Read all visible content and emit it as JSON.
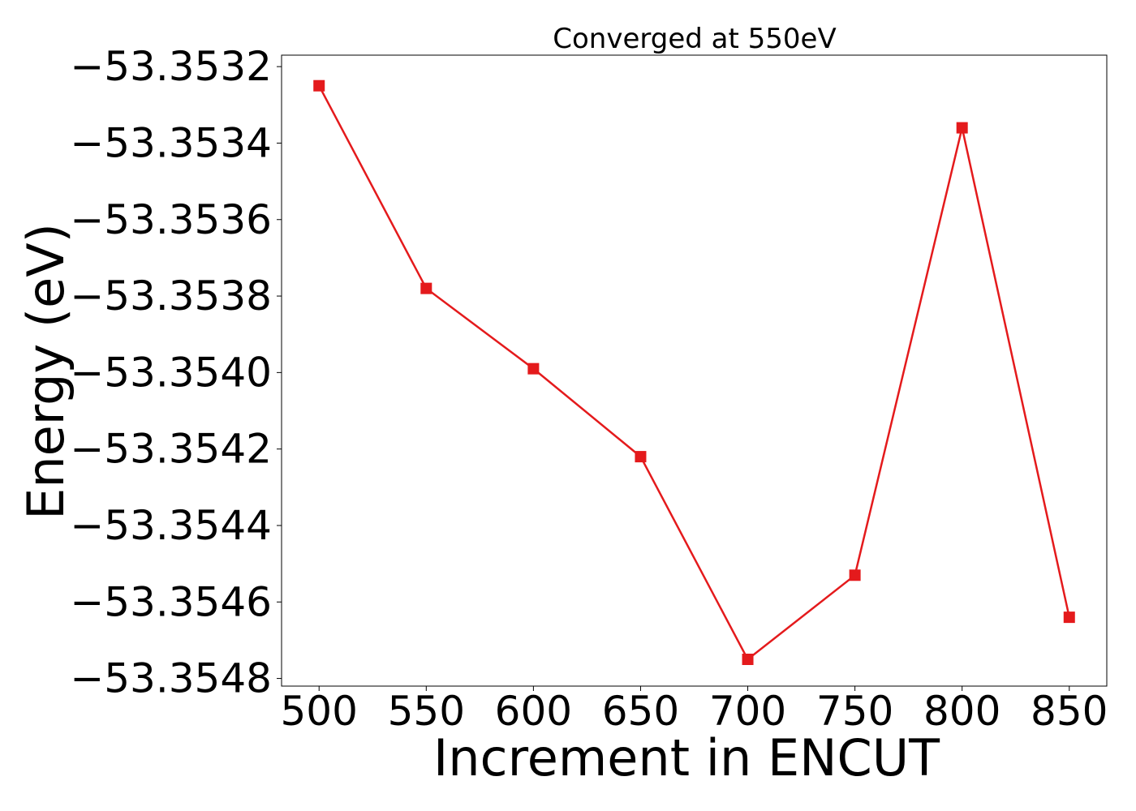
{
  "chart_data": {
    "type": "line",
    "title": "Converged at 550eV",
    "xlabel": "Increment in ENCUT",
    "ylabel": "Energy (eV)",
    "x": [
      500,
      550,
      600,
      650,
      700,
      750,
      800,
      850
    ],
    "series": [
      {
        "values": [
          -53.35325,
          -53.35378,
          -53.35399,
          -53.35422,
          -53.35475,
          -53.35453,
          -53.35336,
          -53.35464
        ],
        "color": "#e41a1c",
        "marker": "square"
      }
    ],
    "x_ticks": [
      500,
      550,
      600,
      650,
      700,
      750,
      800,
      850
    ],
    "x_tick_labels": [
      "500",
      "550",
      "600",
      "650",
      "700",
      "750",
      "800",
      "850"
    ],
    "y_ticks": [
      -53.3548,
      -53.3546,
      -53.3544,
      -53.3542,
      -53.354,
      -53.3538,
      -53.3536,
      -53.3534,
      -53.3532
    ],
    "y_tick_labels": [
      "−53.3548",
      "−53.3546",
      "−53.3544",
      "−53.3542",
      "−53.3540",
      "−53.3538",
      "−53.3536",
      "−53.3534",
      "−53.3532"
    ],
    "xlim": [
      482.5,
      867.5
    ],
    "ylim": [
      -53.35482,
      -53.35317
    ],
    "grid": false,
    "legend": false
  }
}
